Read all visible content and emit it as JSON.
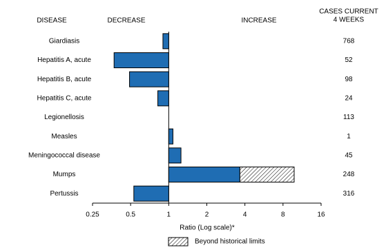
{
  "chart_data": {
    "type": "bar",
    "orientation": "horizontal",
    "xscale": "log",
    "headers": {
      "disease": "DISEASE",
      "decrease": "DECREASE",
      "increase": "INCREASE",
      "cases": [
        "CASES CURRENT",
        "4 WEEKS"
      ]
    },
    "categories": [
      "Giardiasis",
      "Hepatitis A, acute",
      "Hepatitis B, acute",
      "Hepatitis C, acute",
      "Legionellosis",
      "Measles",
      "Meningococcal disease",
      "Mumps",
      "Pertussis"
    ],
    "series": [
      {
        "values": [
          0.9,
          0.37,
          0.49,
          0.82,
          1,
          1.08,
          1.25,
          9.8,
          0.53
        ],
        "historical_limits": [
          null,
          null,
          null,
          null,
          null,
          null,
          null,
          3.65,
          null
        ],
        "color": "#1f6db3"
      }
    ],
    "cases": [
      768,
      52,
      98,
      24,
      113,
      1,
      45,
      248,
      316
    ],
    "xlim": [
      0.25,
      16
    ],
    "xticks": [
      0.25,
      0.5,
      1,
      2,
      4,
      8,
      16
    ],
    "xlabel": "Ratio (Log scale)*",
    "legend": "Beyond historical limits"
  }
}
